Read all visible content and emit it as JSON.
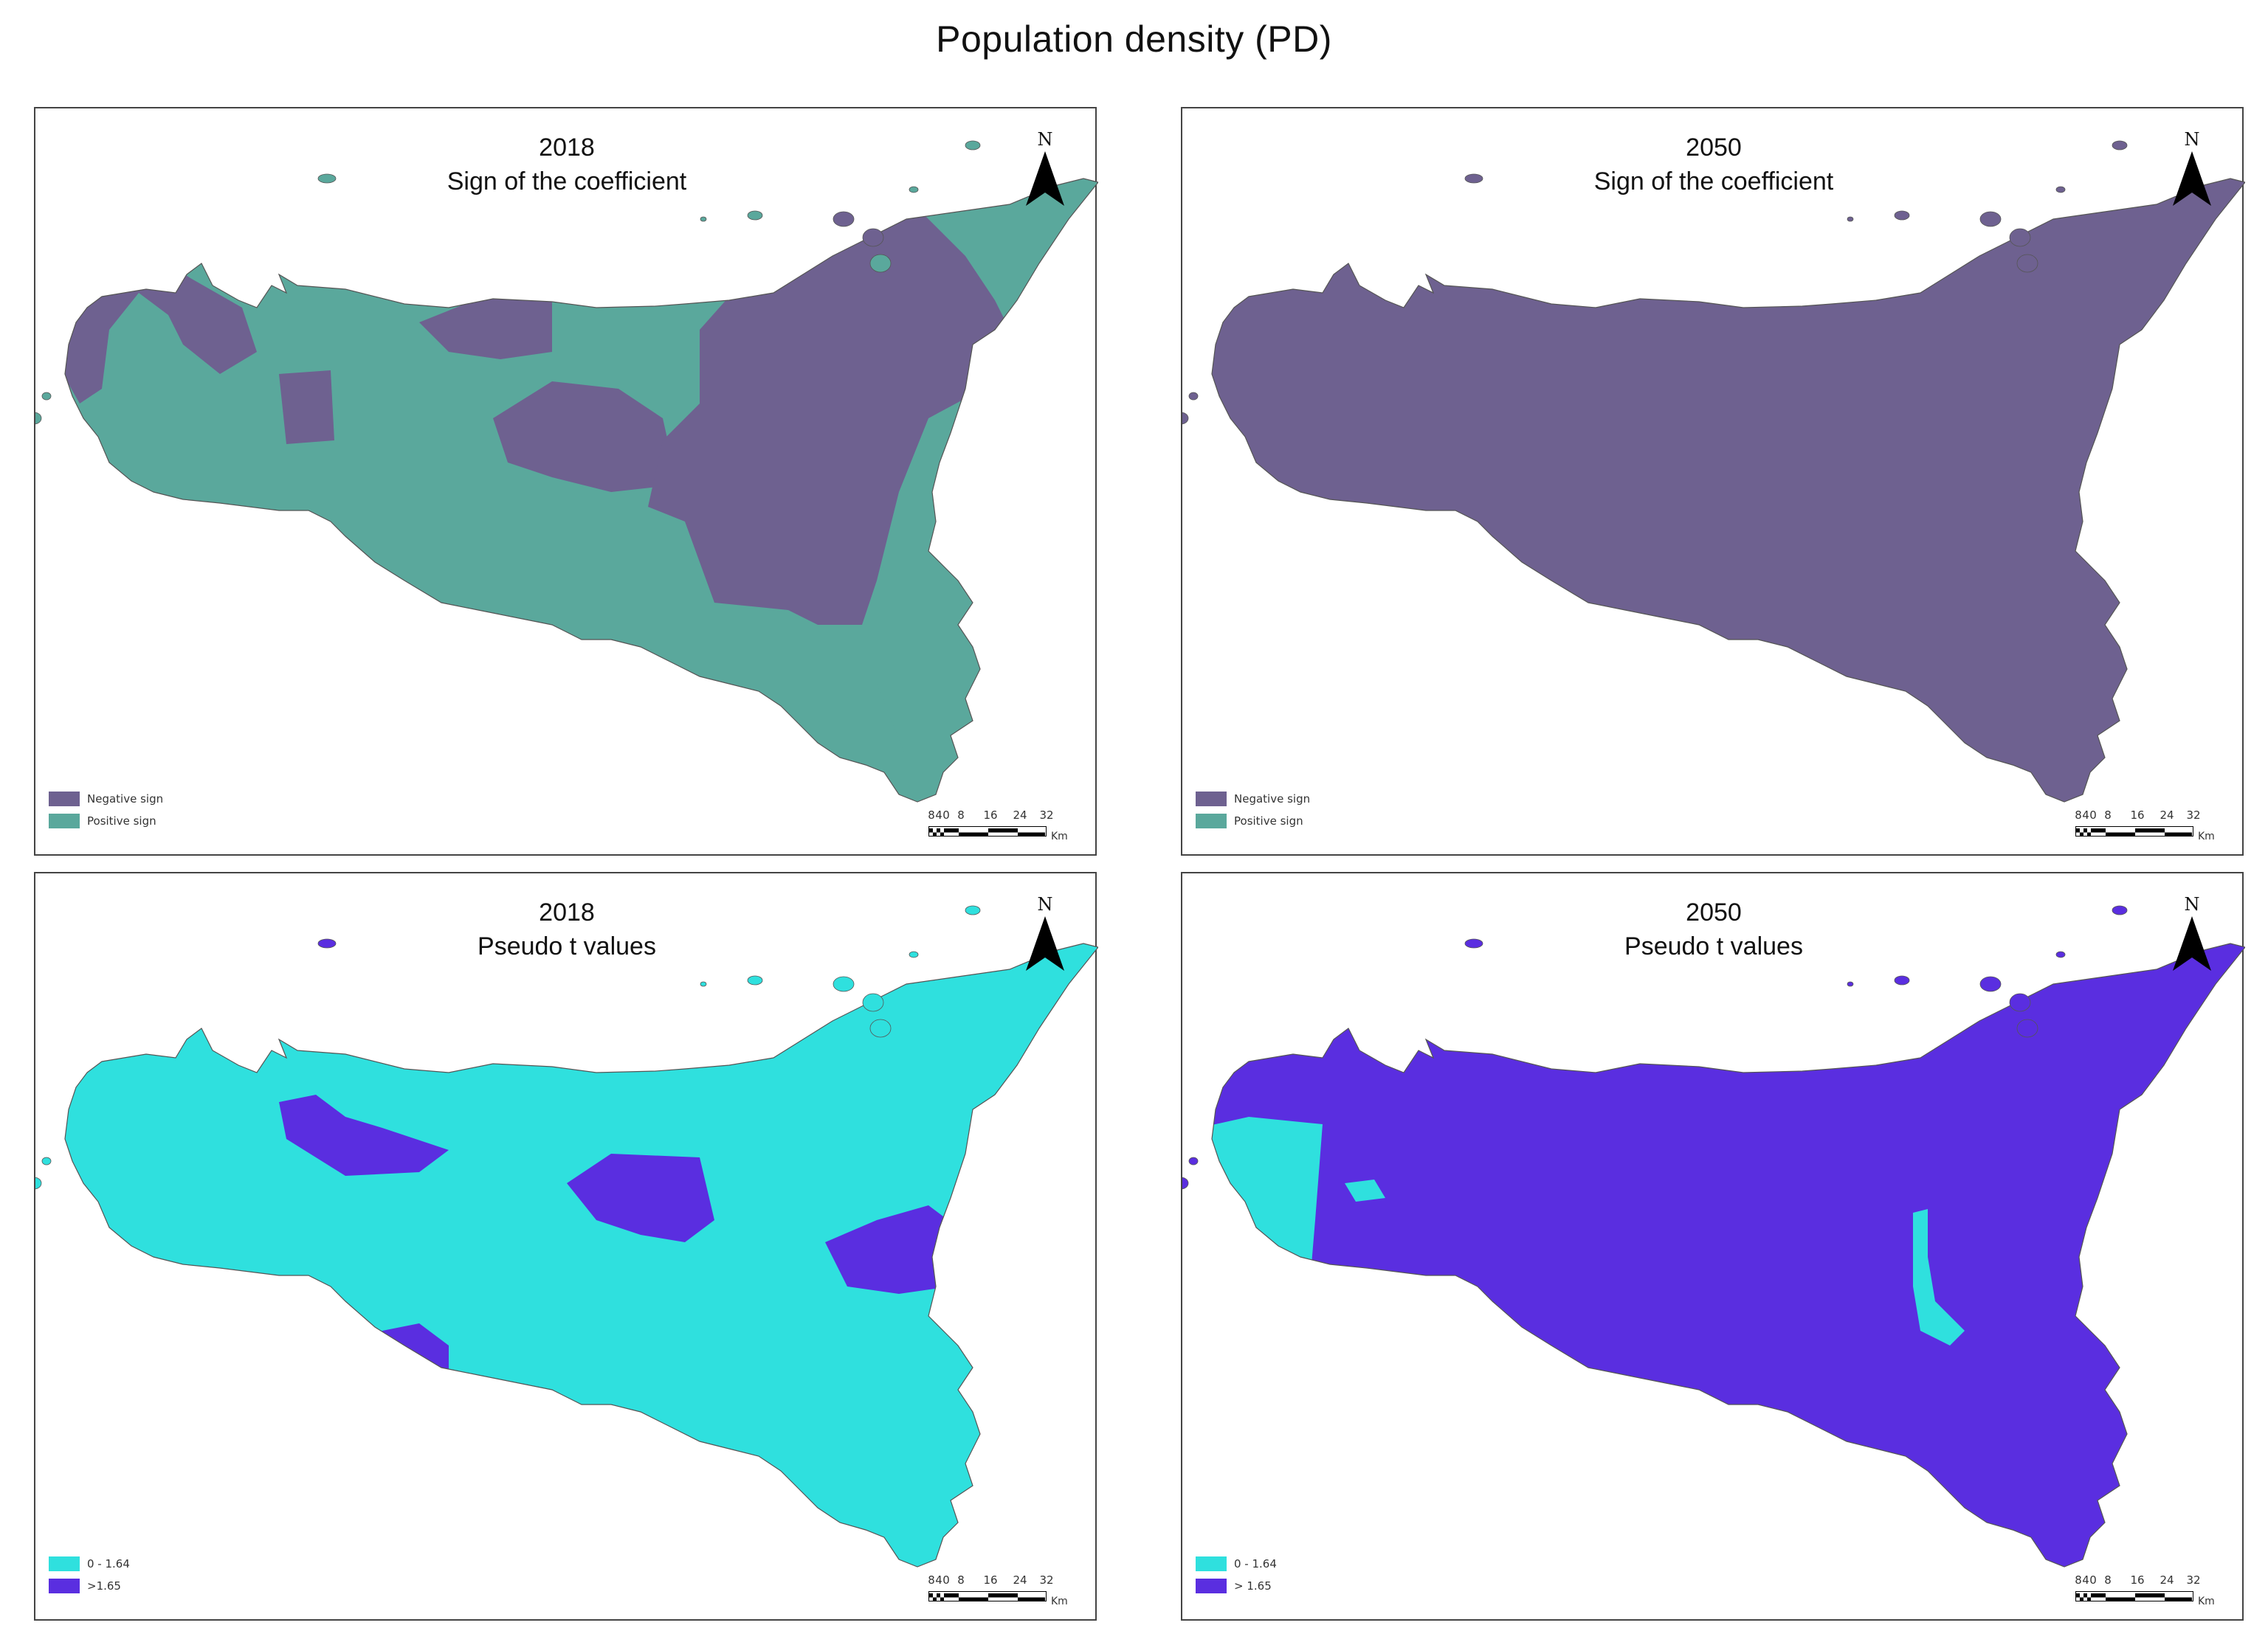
{
  "title": "Population density (PD)",
  "colors": {
    "negative": "#6e6190",
    "positive": "#5aa89c",
    "t_low": "#2fe0de",
    "t_high": "#5a2ee0",
    "border": "#444444"
  },
  "north_label": "N",
  "scale": {
    "ticks": [
      "8",
      "4",
      "0",
      "8",
      "16",
      "24",
      "32"
    ],
    "unit": "Km"
  },
  "panels": [
    {
      "year": "2018",
      "subtitle": "Sign of the coefficient",
      "kind": "sign",
      "legend": [
        {
          "label": "Negative sign",
          "color_key": "negative"
        },
        {
          "label": "Positive sign",
          "color_key": "positive"
        }
      ]
    },
    {
      "year": "2050",
      "subtitle": "Sign of the coefficient",
      "kind": "sign",
      "legend": [
        {
          "label": "Negative sign",
          "color_key": "negative"
        },
        {
          "label": "Positive sign",
          "color_key": "positive"
        }
      ]
    },
    {
      "year": "2018",
      "subtitle": "Pseudo t values",
      "kind": "t",
      "legend": [
        {
          "label": "0 - 1.64",
          "color_key": "t_low"
        },
        {
          "label": ">1.65",
          "color_key": "t_high"
        }
      ]
    },
    {
      "year": "2050",
      "subtitle": "Pseudo t values",
      "kind": "t",
      "legend": [
        {
          "label": "0 - 1.64",
          "color_key": "t_low"
        },
        {
          "label": "> 1.65",
          "color_key": "t_high"
        }
      ]
    }
  ]
}
